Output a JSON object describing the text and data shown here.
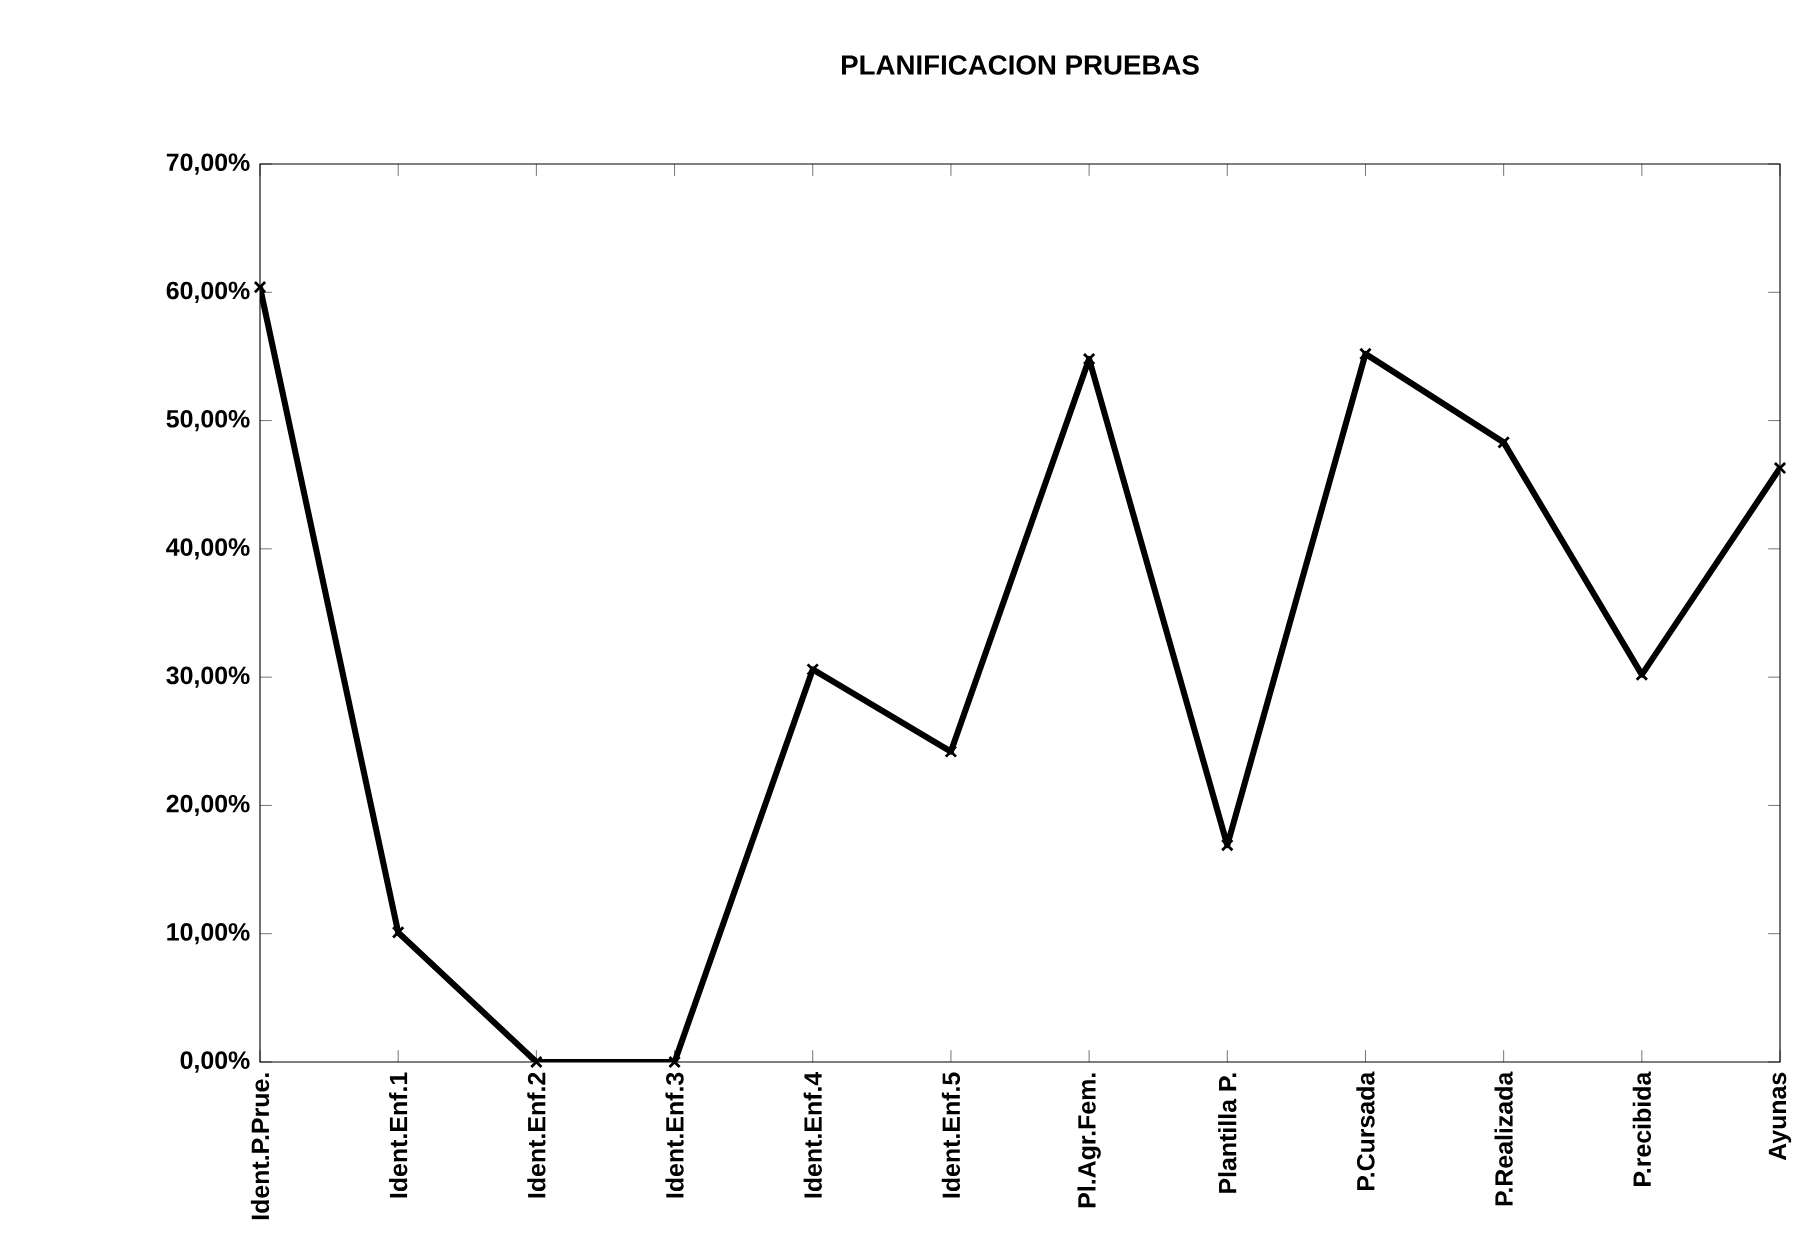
{
  "chart_data": {
    "type": "line",
    "title": "PLANIFICACION PRUEBAS",
    "categories": [
      "Ident.P.Prue.",
      "Ident.Enf.1",
      "Ident.Enf.2",
      "Ident.Enf.3",
      "Ident.Enf.4",
      "Ident.Enf.5",
      "Pl.Agr.Fem.",
      "Plantilla P.",
      "P.Cursada",
      "P.Realizada",
      "P.recibida",
      "Ayunas"
    ],
    "series": [
      {
        "color": "#000000",
        "values": [
          60.4,
          10.1,
          0,
          0,
          30.6,
          24.2,
          54.8,
          16.9,
          55.2,
          48.3,
          30.2,
          46.3
        ]
      }
    ],
    "ylim": [
      0,
      70
    ],
    "yticks": [
      {
        "value": 0,
        "label": "0,00%"
      },
      {
        "value": 10,
        "label": "10,00%"
      },
      {
        "value": 20,
        "label": "20,00%"
      },
      {
        "value": 30,
        "label": "30,00%"
      },
      {
        "value": 40,
        "label": "40,00%"
      },
      {
        "value": 50,
        "label": "50,00%"
      },
      {
        "value": 60,
        "label": "60,00%"
      },
      {
        "value": 70,
        "label": "70,00%"
      }
    ],
    "marker": "cross",
    "line_style": "solid",
    "grid": false,
    "legend": false
  }
}
